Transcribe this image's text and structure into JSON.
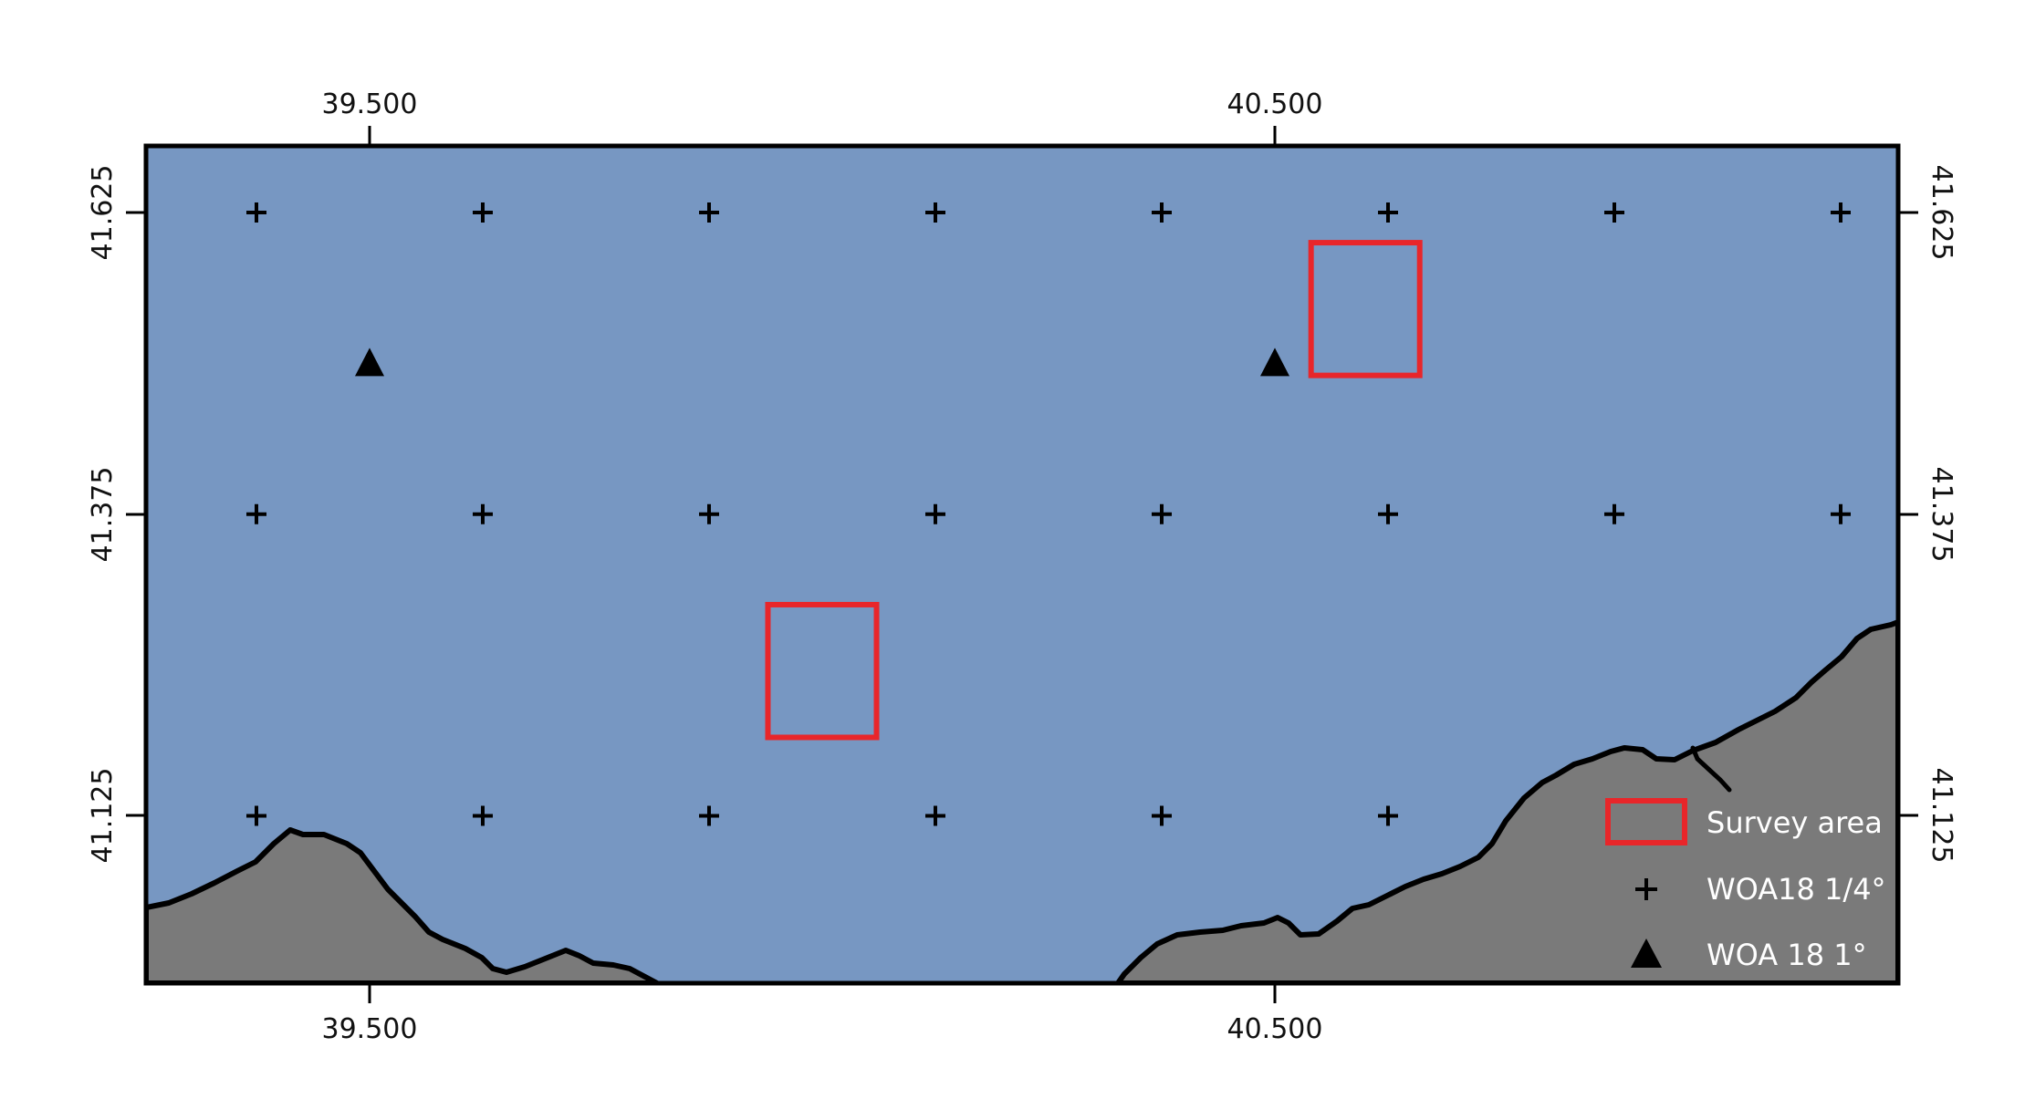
{
  "colors": {
    "sea": "#7797c2",
    "land": "#7a7a7a",
    "coastline": "#000000",
    "frame": "#000000",
    "survey_box": "#e8262a",
    "marker": "#000000",
    "legend_text": "#ffffff"
  },
  "axes": {
    "lon_ticks": [
      "39.500",
      "40.500"
    ],
    "lat_ticks": [
      "41.625",
      "41.375",
      "41.125"
    ]
  },
  "legend": {
    "placement": "bottom-right",
    "items": [
      {
        "label": "Survey area",
        "icon": "red-rectangle-icon"
      },
      {
        "label": "WOA18 1/4°",
        "icon": "plus-marker-icon"
      },
      {
        "label": "WOA 18 1°",
        "icon": "triangle-marker-icon"
      }
    ]
  },
  "map": {
    "extent": {
      "lon": [
        39.25,
        41.19
      ],
      "lat": [
        41.03,
        41.68
      ]
    },
    "woa18_quarter_degree_grid": {
      "lon": [
        39.375,
        39.625,
        39.875,
        40.125,
        40.375,
        40.625,
        40.875,
        41.125
      ],
      "lat": [
        41.625,
        41.375,
        41.125
      ]
    },
    "woa18_one_degree_points": [
      {
        "lon": 39.5,
        "lat": 41.5
      },
      {
        "lon": 40.5,
        "lat": 41.5
      }
    ],
    "survey_areas": [
      {
        "lon": [
          40.54,
          40.66
        ],
        "lat": [
          41.49,
          41.6
        ]
      },
      {
        "lon": [
          39.94,
          40.06
        ],
        "lat": [
          41.19,
          41.3
        ]
      }
    ]
  }
}
